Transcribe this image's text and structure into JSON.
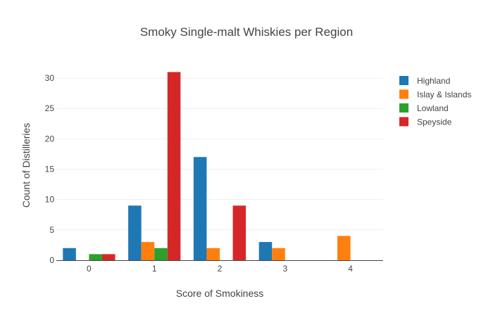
{
  "chart_data": {
    "type": "bar",
    "title": "Smoky Single-malt Whiskies per Region",
    "xlabel": "Score of Smokiness",
    "ylabel": "Count of Distilleries",
    "categories": [
      "0",
      "1",
      "2",
      "3",
      "4"
    ],
    "ylim": [
      0,
      33.6
    ],
    "yticks": [
      0,
      5,
      10,
      15,
      20,
      25,
      30
    ],
    "grid": true,
    "legend_position": "top-right",
    "series": [
      {
        "name": "Highland",
        "color": "#1f77b4",
        "values": [
          2,
          9,
          17,
          3,
          0
        ]
      },
      {
        "name": "Islay & Islands",
        "color": "#ff7f0e",
        "values": [
          0,
          3,
          2,
          2,
          4
        ]
      },
      {
        "name": "Lowland",
        "color": "#2ca02c",
        "values": [
          1,
          2,
          0,
          0,
          0
        ]
      },
      {
        "name": "Speyside",
        "color": "#d62728",
        "values": [
          1,
          31,
          9,
          0,
          0
        ]
      }
    ]
  }
}
